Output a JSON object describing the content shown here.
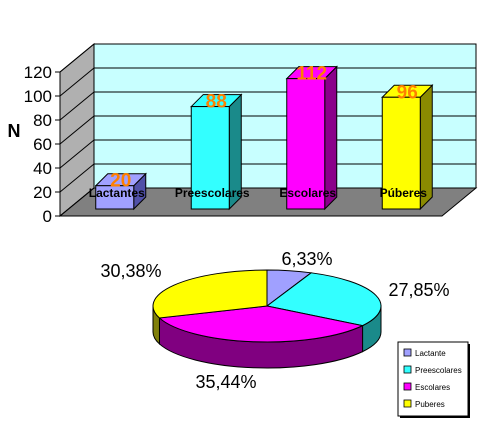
{
  "chart_data": [
    {
      "type": "bar",
      "ylabel": "N",
      "ylim": [
        0,
        120
      ],
      "yticks": [
        0,
        20,
        40,
        60,
        80,
        100,
        120
      ],
      "categories": [
        "Lactantes",
        "Preescolares",
        "Escolares",
        "Púberes"
      ],
      "values": [
        20,
        88,
        112,
        96
      ],
      "data_labels": [
        "20",
        "88",
        "112",
        "96"
      ],
      "colors": [
        "#a0a0ff",
        "#33ffff",
        "#ff00ff",
        "#ffff00"
      ],
      "side_colors": [
        "#5050a8",
        "#1a8a8a",
        "#8a008a",
        "#8a8a00"
      ],
      "data_label_color": "#ff8000",
      "wall_color": "#c8ffff",
      "floor_color": "#808080",
      "grid": true
    },
    {
      "type": "pie",
      "categories": [
        "Lactante",
        "Preescolares",
        "Escolares",
        "Puberes"
      ],
      "values": [
        6.33,
        27.85,
        35.44,
        30.38
      ],
      "data_labels": [
        "6,33%",
        "27,85%",
        "35,44%",
        "30,38%"
      ],
      "colors": [
        "#a0a0ff",
        "#33ffff",
        "#ff00ff",
        "#ffff00"
      ],
      "side_colors": [
        "#50508a",
        "#1a8a8a",
        "#800080",
        "#80800a"
      ],
      "legend": "bottom-right"
    }
  ]
}
